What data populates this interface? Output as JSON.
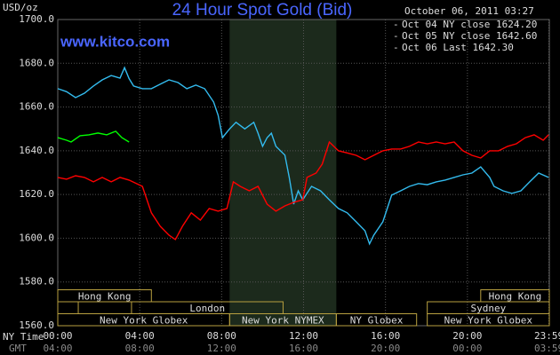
{
  "chart_data": {
    "type": "line",
    "title": "24 Hour Spot Gold (Bid)",
    "subtitle": "October 06, 2011 03:27",
    "source": "www.kitco.com",
    "y_label": "USD/oz",
    "x_label": "NY Time",
    "x2_label": "GMT",
    "xlim": [
      0,
      24
    ],
    "ylim": [
      1560,
      1700
    ],
    "grid": true,
    "xticks": [
      {
        "value": 0,
        "label": "00:00"
      },
      {
        "value": 4,
        "label": "04:00"
      },
      {
        "value": 8,
        "label": "08:00"
      },
      {
        "value": 12,
        "label": "12:00"
      },
      {
        "value": 16,
        "label": "16:00"
      },
      {
        "value": 20,
        "label": "20:00"
      },
      {
        "value": 23.98,
        "label": "23:59"
      }
    ],
    "x2ticks": [
      {
        "value": 0,
        "label": "04:00"
      },
      {
        "value": 4,
        "label": "08:00"
      },
      {
        "value": 8,
        "label": "12:00"
      },
      {
        "value": 12,
        "label": "16:00"
      },
      {
        "value": 16,
        "label": "20:00"
      },
      {
        "value": 20,
        "label": "00:00"
      },
      {
        "value": 23.98,
        "label": "03:59"
      }
    ],
    "yticks": [
      {
        "value": 1560,
        "label": "1560.0"
      },
      {
        "value": 1580,
        "label": "1580.0"
      },
      {
        "value": 1600,
        "label": "1600.0"
      },
      {
        "value": 1620,
        "label": "1620.0"
      },
      {
        "value": 1640,
        "label": "1640.0"
      },
      {
        "value": 1660,
        "label": "1660.0"
      },
      {
        "value": 1680,
        "label": "1680.0"
      },
      {
        "value": 1700,
        "label": "1700.0"
      }
    ],
    "highlight": [
      8.39,
      13.6
    ],
    "sessions": [
      {
        "label": "Hong Kong",
        "start": 0,
        "end": 4.57,
        "row": 0
      },
      {
        "label": "Hong Kong",
        "start": 20.65,
        "end": 24,
        "row": 0
      },
      {
        "label": null,
        "start": 0,
        "end": 1,
        "row": 1
      },
      {
        "label": "London",
        "start": 3.6,
        "end": 11,
        "row": 1
      },
      {
        "label": "Sydney",
        "start": 18.04,
        "end": 24,
        "row": 1
      },
      {
        "label": "New York Globex",
        "start": 0,
        "end": 8.39,
        "row": 2
      },
      {
        "label": "New York NYMEX",
        "start": 8.39,
        "end": 13.6,
        "row": 2
      },
      {
        "label": "NY Globex",
        "start": 13.6,
        "end": 17.52,
        "row": 2
      },
      {
        "label": "New York Globex",
        "start": 18.04,
        "end": 24,
        "row": 2
      }
    ],
    "series": [
      {
        "name": "Oct 04 NY close 1624.20",
        "color": "#33bbee",
        "x": [
          0,
          0.43,
          0.87,
          1.3,
          1.74,
          2.17,
          2.61,
          3.04,
          3.26,
          3.48,
          3.7,
          4.13,
          4.57,
          5,
          5.43,
          5.87,
          6.3,
          6.74,
          7.17,
          7.61,
          7.83,
          8.04,
          8.39,
          8.7,
          9.13,
          9.57,
          9.78,
          10,
          10.22,
          10.43,
          10.65,
          11.09,
          11.3,
          11.52,
          11.74,
          11.96,
          12.39,
          12.83,
          13.26,
          13.7,
          14.13,
          14.57,
          15,
          15.22,
          15.43,
          15.87,
          16.3,
          16.74,
          17.17,
          17.61,
          18.04,
          18.48,
          18.91,
          19.35,
          19.78,
          20.22,
          20.65,
          21.09,
          21.3,
          21.74,
          22.17,
          22.61,
          23.04,
          23.48,
          23.96
        ],
        "values": [
          1668.4,
          1667,
          1664.3,
          1666.3,
          1669.6,
          1672.4,
          1674.4,
          1673.2,
          1678,
          1673,
          1669.6,
          1668.4,
          1668.4,
          1670.4,
          1672.4,
          1671.2,
          1668.4,
          1670,
          1668.4,
          1662.3,
          1656.2,
          1646,
          1650,
          1653,
          1650,
          1653,
          1648,
          1642,
          1646,
          1648,
          1642,
          1638,
          1627.8,
          1615.6,
          1621.7,
          1617.6,
          1623.7,
          1621.7,
          1617.6,
          1613.6,
          1611.6,
          1607.5,
          1603.4,
          1597.4,
          1601.4,
          1607.5,
          1619.7,
          1621.7,
          1623.7,
          1625,
          1624.5,
          1625.8,
          1626.6,
          1627.8,
          1629,
          1629.8,
          1632.6,
          1627.8,
          1623.7,
          1621.7,
          1620.5,
          1621.7,
          1625.8,
          1629.8,
          1627.8
        ]
      },
      {
        "name": "Oct 05 NY close 1642.60",
        "color": "#ff0000",
        "x": [
          0,
          0.43,
          0.87,
          1.3,
          1.74,
          2.17,
          2.61,
          3.04,
          3.48,
          4.13,
          4.57,
          5,
          5.43,
          5.74,
          6.09,
          6.52,
          6.96,
          7.39,
          7.83,
          8.26,
          8.57,
          8.91,
          9.35,
          9.78,
          10.22,
          10.65,
          11.09,
          11.52,
          11.96,
          12.17,
          12.61,
          12.91,
          13.26,
          13.7,
          14.13,
          14.57,
          15,
          15.43,
          15.87,
          16.3,
          16.74,
          17.17,
          17.61,
          18.04,
          18.48,
          18.91,
          19.35,
          19.78,
          20.22,
          20.65,
          21.09,
          21.52,
          21.96,
          22.39,
          22.83,
          23.26,
          23.7,
          23.96
        ],
        "values": [
          1627.8,
          1627,
          1628.6,
          1627.8,
          1625.8,
          1627.8,
          1625.8,
          1627.8,
          1626.6,
          1623.7,
          1611.6,
          1605.5,
          1601.4,
          1599.4,
          1605.5,
          1611.6,
          1608.3,
          1613.6,
          1612.4,
          1613.6,
          1625.8,
          1623.7,
          1621.7,
          1623.7,
          1615.6,
          1612.4,
          1614.8,
          1616.4,
          1617.6,
          1627.8,
          1629.8,
          1633.9,
          1644,
          1640,
          1639,
          1637.9,
          1635.9,
          1637.9,
          1640,
          1640.8,
          1640.8,
          1642,
          1644,
          1643.2,
          1644,
          1643.2,
          1644,
          1640,
          1637.9,
          1636.7,
          1640,
          1640,
          1642,
          1643.2,
          1646,
          1647.3,
          1644.8,
          1647.3
        ]
      },
      {
        "name": "Oct 06 Last 1642.30",
        "color": "#00ff00",
        "x": [
          0,
          0.43,
          0.65,
          1.09,
          1.52,
          1.96,
          2.39,
          2.83,
          3.13,
          3.48
        ],
        "values": [
          1646,
          1644.8,
          1644,
          1646.9,
          1647.3,
          1648.1,
          1647.3,
          1648.9,
          1646,
          1644
        ]
      }
    ]
  }
}
